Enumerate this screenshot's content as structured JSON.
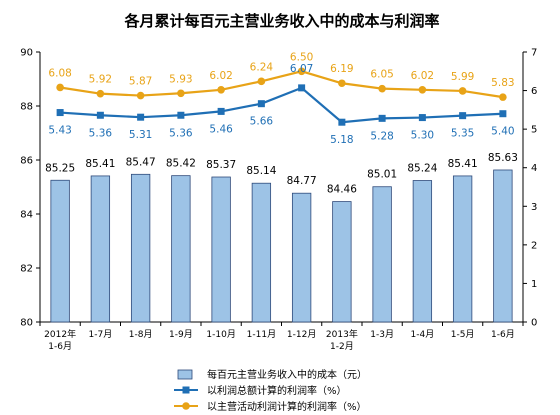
{
  "chart_data": {
    "type": "bar",
    "title": "各月累计每百元主营业务收入中的成本与利润率",
    "categories": [
      [
        "2012年",
        "1-6月"
      ],
      [
        "1-7月"
      ],
      [
        "1-8月"
      ],
      [
        "1-9月"
      ],
      [
        "1-10月"
      ],
      [
        "1-11月"
      ],
      [
        "1-12月"
      ],
      [
        "2013年",
        "1-2月"
      ],
      [
        "1-3月"
      ],
      [
        "1-4月"
      ],
      [
        "1-5月"
      ],
      [
        "1-6月"
      ]
    ],
    "left_axis": {
      "ylim": [
        80,
        90
      ],
      "ticks": [
        "80",
        "82",
        "84",
        "86",
        "88",
        "90"
      ]
    },
    "right_axis": {
      "ylim": [
        0,
        7
      ],
      "ticks": [
        "0",
        "1",
        "2",
        "3",
        "4",
        "5",
        "6",
        "7"
      ]
    },
    "grid": false,
    "legend_position": "bottom",
    "series": [
      {
        "name": "每百元主营业务收入中的成本（元）",
        "kind": "bar",
        "axis": "left",
        "color": "#9DC3E6",
        "values": [
          85.25,
          85.41,
          85.47,
          85.42,
          85.37,
          85.14,
          84.77,
          84.46,
          85.01,
          85.24,
          85.41,
          85.63
        ],
        "labels": [
          "85.25",
          "85.41",
          "85.47",
          "85.42",
          "85.37",
          "85.14",
          "84.77",
          "84.46",
          "85.01",
          "85.24",
          "85.41",
          "85.63"
        ]
      },
      {
        "name": "以利润总额计算的利润率（%）",
        "kind": "line",
        "marker": "square",
        "axis": "right",
        "color": "#1F6FB5",
        "values": [
          5.43,
          5.36,
          5.31,
          5.36,
          5.46,
          5.66,
          6.07,
          5.18,
          5.28,
          5.3,
          5.35,
          5.4
        ],
        "labels": [
          "5.43",
          "5.36",
          "5.31",
          "5.36",
          "5.46",
          "5.66",
          "6.07",
          "5.18",
          "5.28",
          "5.30",
          "5.35",
          "5.40"
        ]
      },
      {
        "name": "以主营活动利润计算的利润率（%）",
        "kind": "line",
        "marker": "circle",
        "axis": "right",
        "color": "#E8A317",
        "values": [
          6.08,
          5.92,
          5.87,
          5.93,
          6.02,
          6.24,
          6.5,
          6.19,
          6.05,
          6.02,
          5.99,
          5.83
        ],
        "labels": [
          "6.08",
          "5.92",
          "5.87",
          "5.93",
          "6.02",
          "6.24",
          "6.50",
          "6.19",
          "6.05",
          "6.02",
          "5.99",
          "5.83"
        ]
      }
    ]
  }
}
